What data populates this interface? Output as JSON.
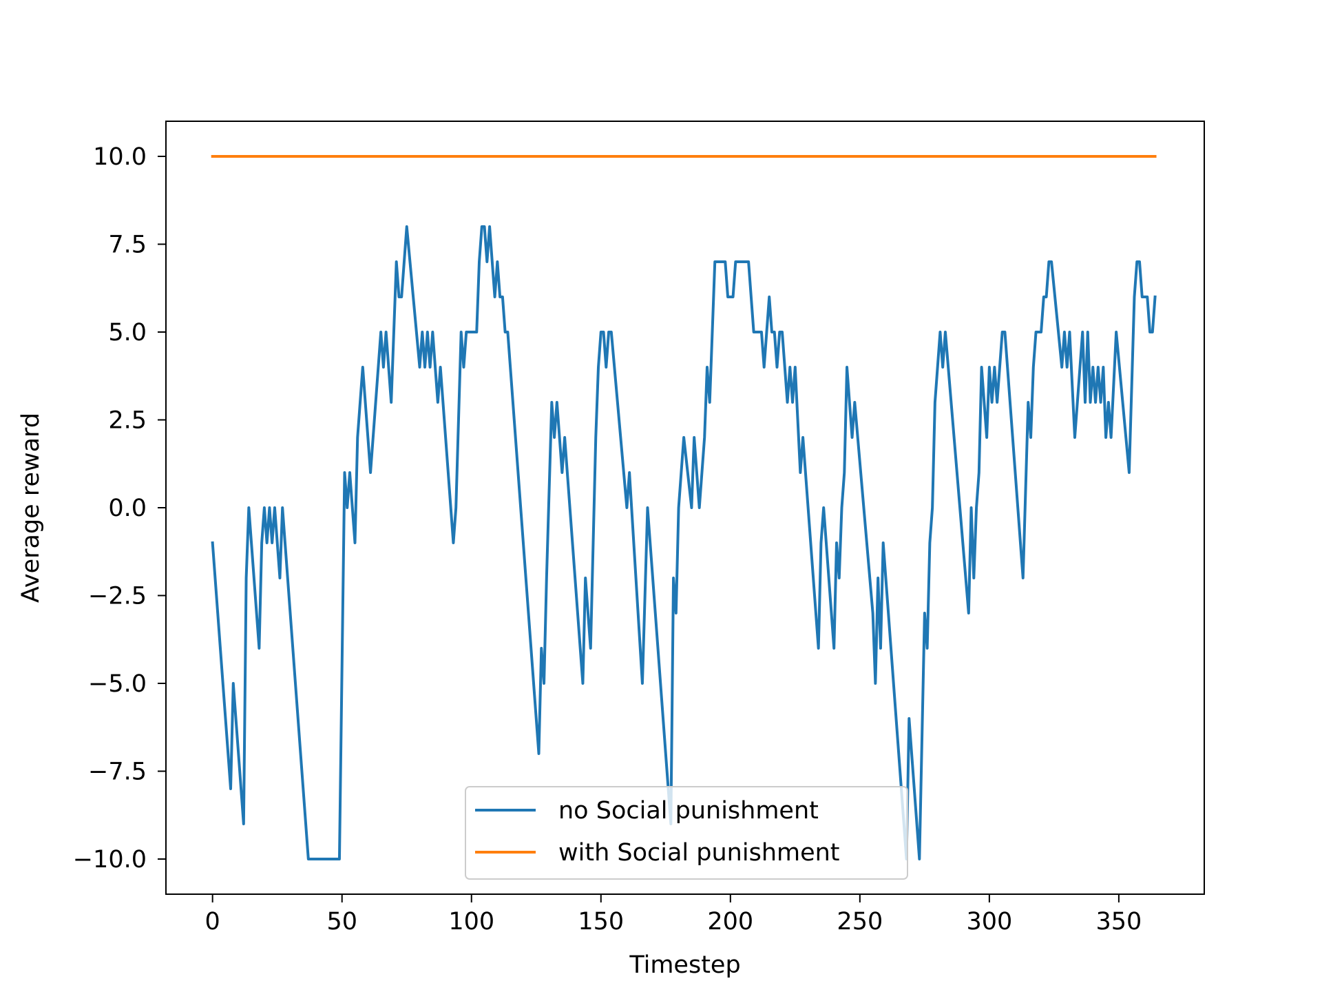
{
  "chart_data": {
    "type": "line",
    "title": "",
    "xlabel": "Timestep",
    "ylabel": "Average reward",
    "xlim": [
      -18,
      383
    ],
    "ylim": [
      -11,
      11
    ],
    "xticks": [
      0,
      50,
      100,
      150,
      200,
      250,
      300,
      350
    ],
    "yticks": [
      -10,
      -7.5,
      -5,
      -2.5,
      0,
      2.5,
      5,
      7.5,
      10
    ],
    "xtick_labels": [
      "0",
      "50",
      "100",
      "150",
      "200",
      "250",
      "300",
      "350"
    ],
    "ytick_labels": [
      "−10.0",
      "−7.5",
      "−5.0",
      "−2.5",
      "0.0",
      "2.5",
      "5.0",
      "7.5",
      "10.0"
    ],
    "grid": false,
    "legend_position": "lower-center",
    "series": [
      {
        "name": "no Social punishment",
        "color": "#1f77b4",
        "points": [
          [
            0,
            -1
          ],
          [
            7,
            -8
          ],
          [
            8,
            -5
          ],
          [
            12,
            -9
          ],
          [
            13,
            -2
          ],
          [
            14,
            0
          ],
          [
            18,
            -4
          ],
          [
            19,
            -1
          ],
          [
            20,
            0
          ],
          [
            21,
            -1
          ],
          [
            22,
            0
          ],
          [
            23,
            -1
          ],
          [
            24,
            0
          ],
          [
            26,
            -2
          ],
          [
            27,
            0
          ],
          [
            28,
            -1
          ],
          [
            37,
            -10
          ],
          [
            49,
            -10
          ],
          [
            51,
            1
          ],
          [
            52,
            0
          ],
          [
            53,
            1
          ],
          [
            55,
            -1
          ],
          [
            56,
            2
          ],
          [
            58,
            4
          ],
          [
            61,
            1
          ],
          [
            65,
            5
          ],
          [
            66,
            4
          ],
          [
            67,
            5
          ],
          [
            69,
            3
          ],
          [
            71,
            7
          ],
          [
            72,
            6
          ],
          [
            73,
            6
          ],
          [
            75,
            8
          ],
          [
            80,
            4
          ],
          [
            81,
            5
          ],
          [
            82,
            4
          ],
          [
            83,
            5
          ],
          [
            84,
            4
          ],
          [
            85,
            5
          ],
          [
            87,
            3
          ],
          [
            88,
            4
          ],
          [
            93,
            -1
          ],
          [
            94,
            0
          ],
          [
            96,
            5
          ],
          [
            97,
            4
          ],
          [
            98,
            5
          ],
          [
            102,
            5
          ],
          [
            103,
            7
          ],
          [
            104,
            8
          ],
          [
            105,
            8
          ],
          [
            106,
            7
          ],
          [
            107,
            8
          ],
          [
            109,
            6
          ],
          [
            110,
            7
          ],
          [
            111,
            6
          ],
          [
            112,
            6
          ],
          [
            113,
            5
          ],
          [
            114,
            5
          ],
          [
            126,
            -7
          ],
          [
            127,
            -4
          ],
          [
            128,
            -5
          ],
          [
            129,
            -2
          ],
          [
            131,
            3
          ],
          [
            132,
            2
          ],
          [
            133,
            3
          ],
          [
            135,
            1
          ],
          [
            136,
            2
          ],
          [
            143,
            -5
          ],
          [
            144,
            -2
          ],
          [
            146,
            -4
          ],
          [
            148,
            2
          ],
          [
            149,
            4
          ],
          [
            150,
            5
          ],
          [
            151,
            5
          ],
          [
            152,
            4
          ],
          [
            153,
            5
          ],
          [
            154,
            5
          ],
          [
            160,
            0
          ],
          [
            161,
            1
          ],
          [
            166,
            -5
          ],
          [
            168,
            0
          ],
          [
            176,
            -8
          ],
          [
            177,
            -9
          ],
          [
            178,
            -2
          ],
          [
            179,
            -3
          ],
          [
            180,
            0
          ],
          [
            182,
            2
          ],
          [
            185,
            0
          ],
          [
            186,
            2
          ],
          [
            188,
            0
          ],
          [
            190,
            2
          ],
          [
            191,
            4
          ],
          [
            192,
            3
          ],
          [
            194,
            7
          ],
          [
            198,
            7
          ],
          [
            199,
            6
          ],
          [
            201,
            6
          ],
          [
            202,
            7
          ],
          [
            207,
            7
          ],
          [
            209,
            5
          ],
          [
            212,
            5
          ],
          [
            213,
            4
          ],
          [
            215,
            6
          ],
          [
            216,
            5
          ],
          [
            217,
            5
          ],
          [
            218,
            4
          ],
          [
            219,
            5
          ],
          [
            220,
            5
          ],
          [
            221,
            4
          ],
          [
            222,
            3
          ],
          [
            223,
            4
          ],
          [
            224,
            3
          ],
          [
            225,
            4
          ],
          [
            227,
            1
          ],
          [
            228,
            2
          ],
          [
            234,
            -4
          ],
          [
            235,
            -1
          ],
          [
            236,
            0
          ],
          [
            237,
            -1
          ],
          [
            240,
            -4
          ],
          [
            241,
            -1
          ],
          [
            242,
            -2
          ],
          [
            243,
            0
          ],
          [
            244,
            1
          ],
          [
            245,
            4
          ],
          [
            247,
            2
          ],
          [
            248,
            3
          ],
          [
            255,
            -3
          ],
          [
            256,
            -5
          ],
          [
            257,
            -2
          ],
          [
            258,
            -4
          ],
          [
            259,
            -1
          ],
          [
            267,
            -9
          ],
          [
            268,
            -10
          ],
          [
            269,
            -6
          ],
          [
            273,
            -10
          ],
          [
            275,
            -3
          ],
          [
            276,
            -4
          ],
          [
            277,
            -1
          ],
          [
            278,
            0
          ],
          [
            279,
            3
          ],
          [
            281,
            5
          ],
          [
            282,
            4
          ],
          [
            283,
            5
          ],
          [
            292,
            -3
          ],
          [
            293,
            0
          ],
          [
            294,
            -2
          ],
          [
            295,
            0
          ],
          [
            296,
            1
          ],
          [
            297,
            4
          ],
          [
            299,
            2
          ],
          [
            300,
            4
          ],
          [
            301,
            3
          ],
          [
            302,
            4
          ],
          [
            303,
            3
          ],
          [
            305,
            5
          ],
          [
            306,
            5
          ],
          [
            313,
            -2
          ],
          [
            315,
            3
          ],
          [
            316,
            2
          ],
          [
            317,
            4
          ],
          [
            318,
            5
          ],
          [
            320,
            5
          ],
          [
            321,
            6
          ],
          [
            322,
            6
          ],
          [
            323,
            7
          ],
          [
            324,
            7
          ],
          [
            328,
            4
          ],
          [
            329,
            5
          ],
          [
            330,
            4
          ],
          [
            331,
            5
          ],
          [
            333,
            2
          ],
          [
            336,
            5
          ],
          [
            337,
            3
          ],
          [
            338,
            5
          ],
          [
            339,
            3
          ],
          [
            340,
            4
          ],
          [
            341,
            3
          ],
          [
            342,
            4
          ],
          [
            343,
            3
          ],
          [
            344,
            4
          ],
          [
            345,
            2
          ],
          [
            346,
            3
          ],
          [
            347,
            2
          ],
          [
            349,
            5
          ],
          [
            354,
            1
          ],
          [
            356,
            6
          ],
          [
            357,
            7
          ],
          [
            358,
            7
          ],
          [
            359,
            6
          ],
          [
            361,
            6
          ],
          [
            362,
            5
          ],
          [
            363,
            5
          ],
          [
            364,
            6
          ]
        ]
      },
      {
        "name": "with Social punishment",
        "color": "#ff7f0e",
        "points": [
          [
            0,
            10
          ],
          [
            364,
            10
          ]
        ]
      }
    ]
  }
}
